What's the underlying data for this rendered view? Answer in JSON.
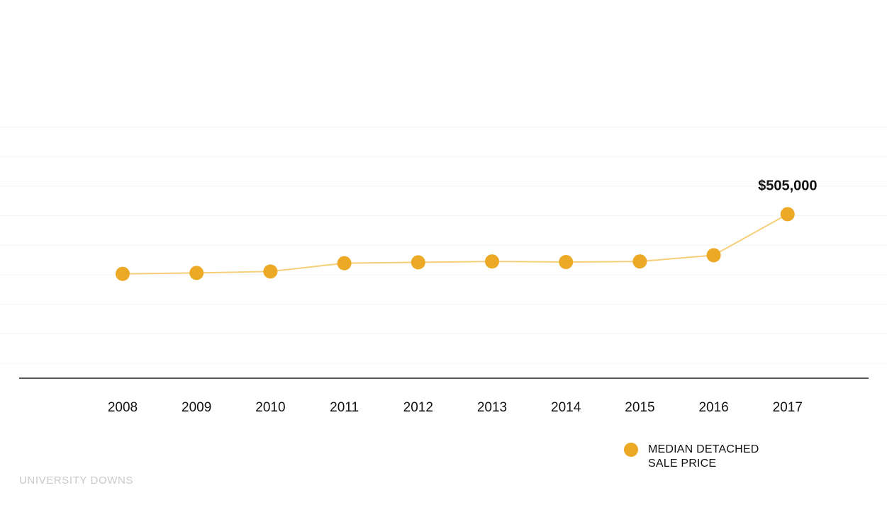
{
  "chart_data": {
    "type": "line",
    "title": "",
    "xlabel": "",
    "ylabel": "",
    "categories": [
      "2008",
      "2009",
      "2010",
      "2011",
      "2012",
      "2013",
      "2014",
      "2015",
      "2016",
      "2017"
    ],
    "series": [
      {
        "name": "MEDIAN DETACHED SALE PRICE",
        "values": [
          303000,
          306000,
          311000,
          339000,
          342000,
          345000,
          343000,
          345000,
          366000,
          505000
        ]
      }
    ],
    "ylim": [
      0,
      1000000
    ],
    "grid": true,
    "legend_position": "bottom-right",
    "annotations": [
      {
        "category": "2017",
        "text": "$505,000"
      }
    ]
  },
  "legend": {
    "label_line1": "MEDIAN DETACHED",
    "label_line2": "SALE PRICE"
  },
  "footer": {
    "text": "UNIVERSITY DOWNS"
  },
  "colors": {
    "series": "#EBA926",
    "line": "#F5CF78",
    "axis": "#222222",
    "grid": "#f4f4f4",
    "footer": "#c9c9c9"
  }
}
